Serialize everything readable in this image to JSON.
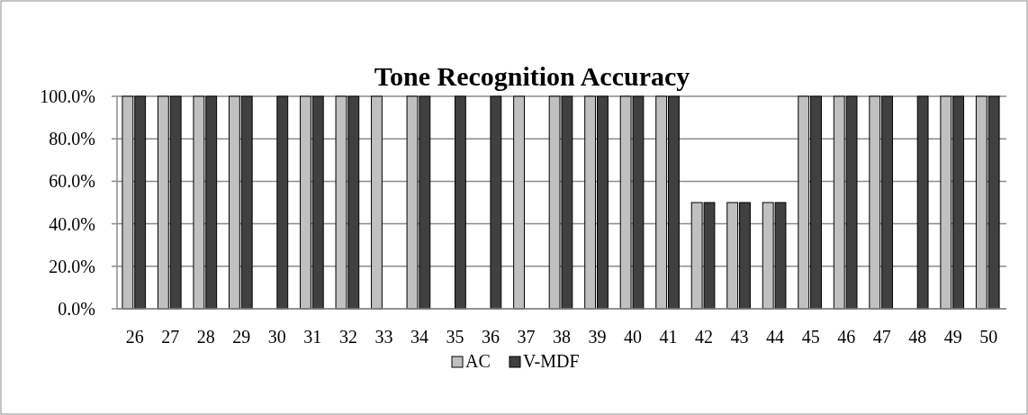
{
  "chart_data": {
    "type": "bar",
    "title": "Tone Recognition Accuracy",
    "categories": [
      "26",
      "27",
      "28",
      "29",
      "30",
      "31",
      "32",
      "33",
      "34",
      "35",
      "36",
      "37",
      "38",
      "39",
      "40",
      "41",
      "42",
      "43",
      "44",
      "45",
      "46",
      "47",
      "48",
      "49",
      "50"
    ],
    "series": [
      {
        "name": "AC",
        "color": "#c0c0c0",
        "values": [
          100,
          100,
          100,
          100,
          0,
          100,
          100,
          100,
          100,
          0,
          0,
          100,
          100,
          100,
          100,
          100,
          50,
          50,
          50,
          100,
          100,
          100,
          0,
          100,
          100
        ]
      },
      {
        "name": "V-MDF",
        "color": "#404040",
        "values": [
          100,
          100,
          100,
          100,
          100,
          100,
          100,
          0,
          100,
          100,
          100,
          0,
          100,
          100,
          100,
          100,
          50,
          50,
          50,
          100,
          100,
          100,
          100,
          100,
          100
        ]
      }
    ],
    "ylim": [
      0,
      100
    ],
    "yticks": [
      {
        "value": 0,
        "label": "0.0%"
      },
      {
        "value": 20,
        "label": "20.0%"
      },
      {
        "value": 40,
        "label": "40.0%"
      },
      {
        "value": 60,
        "label": "60.0%"
      },
      {
        "value": 80,
        "label": "80.0%"
      },
      {
        "value": 100,
        "label": "100.0%"
      }
    ],
    "grid": "y",
    "legend": "bottom"
  }
}
